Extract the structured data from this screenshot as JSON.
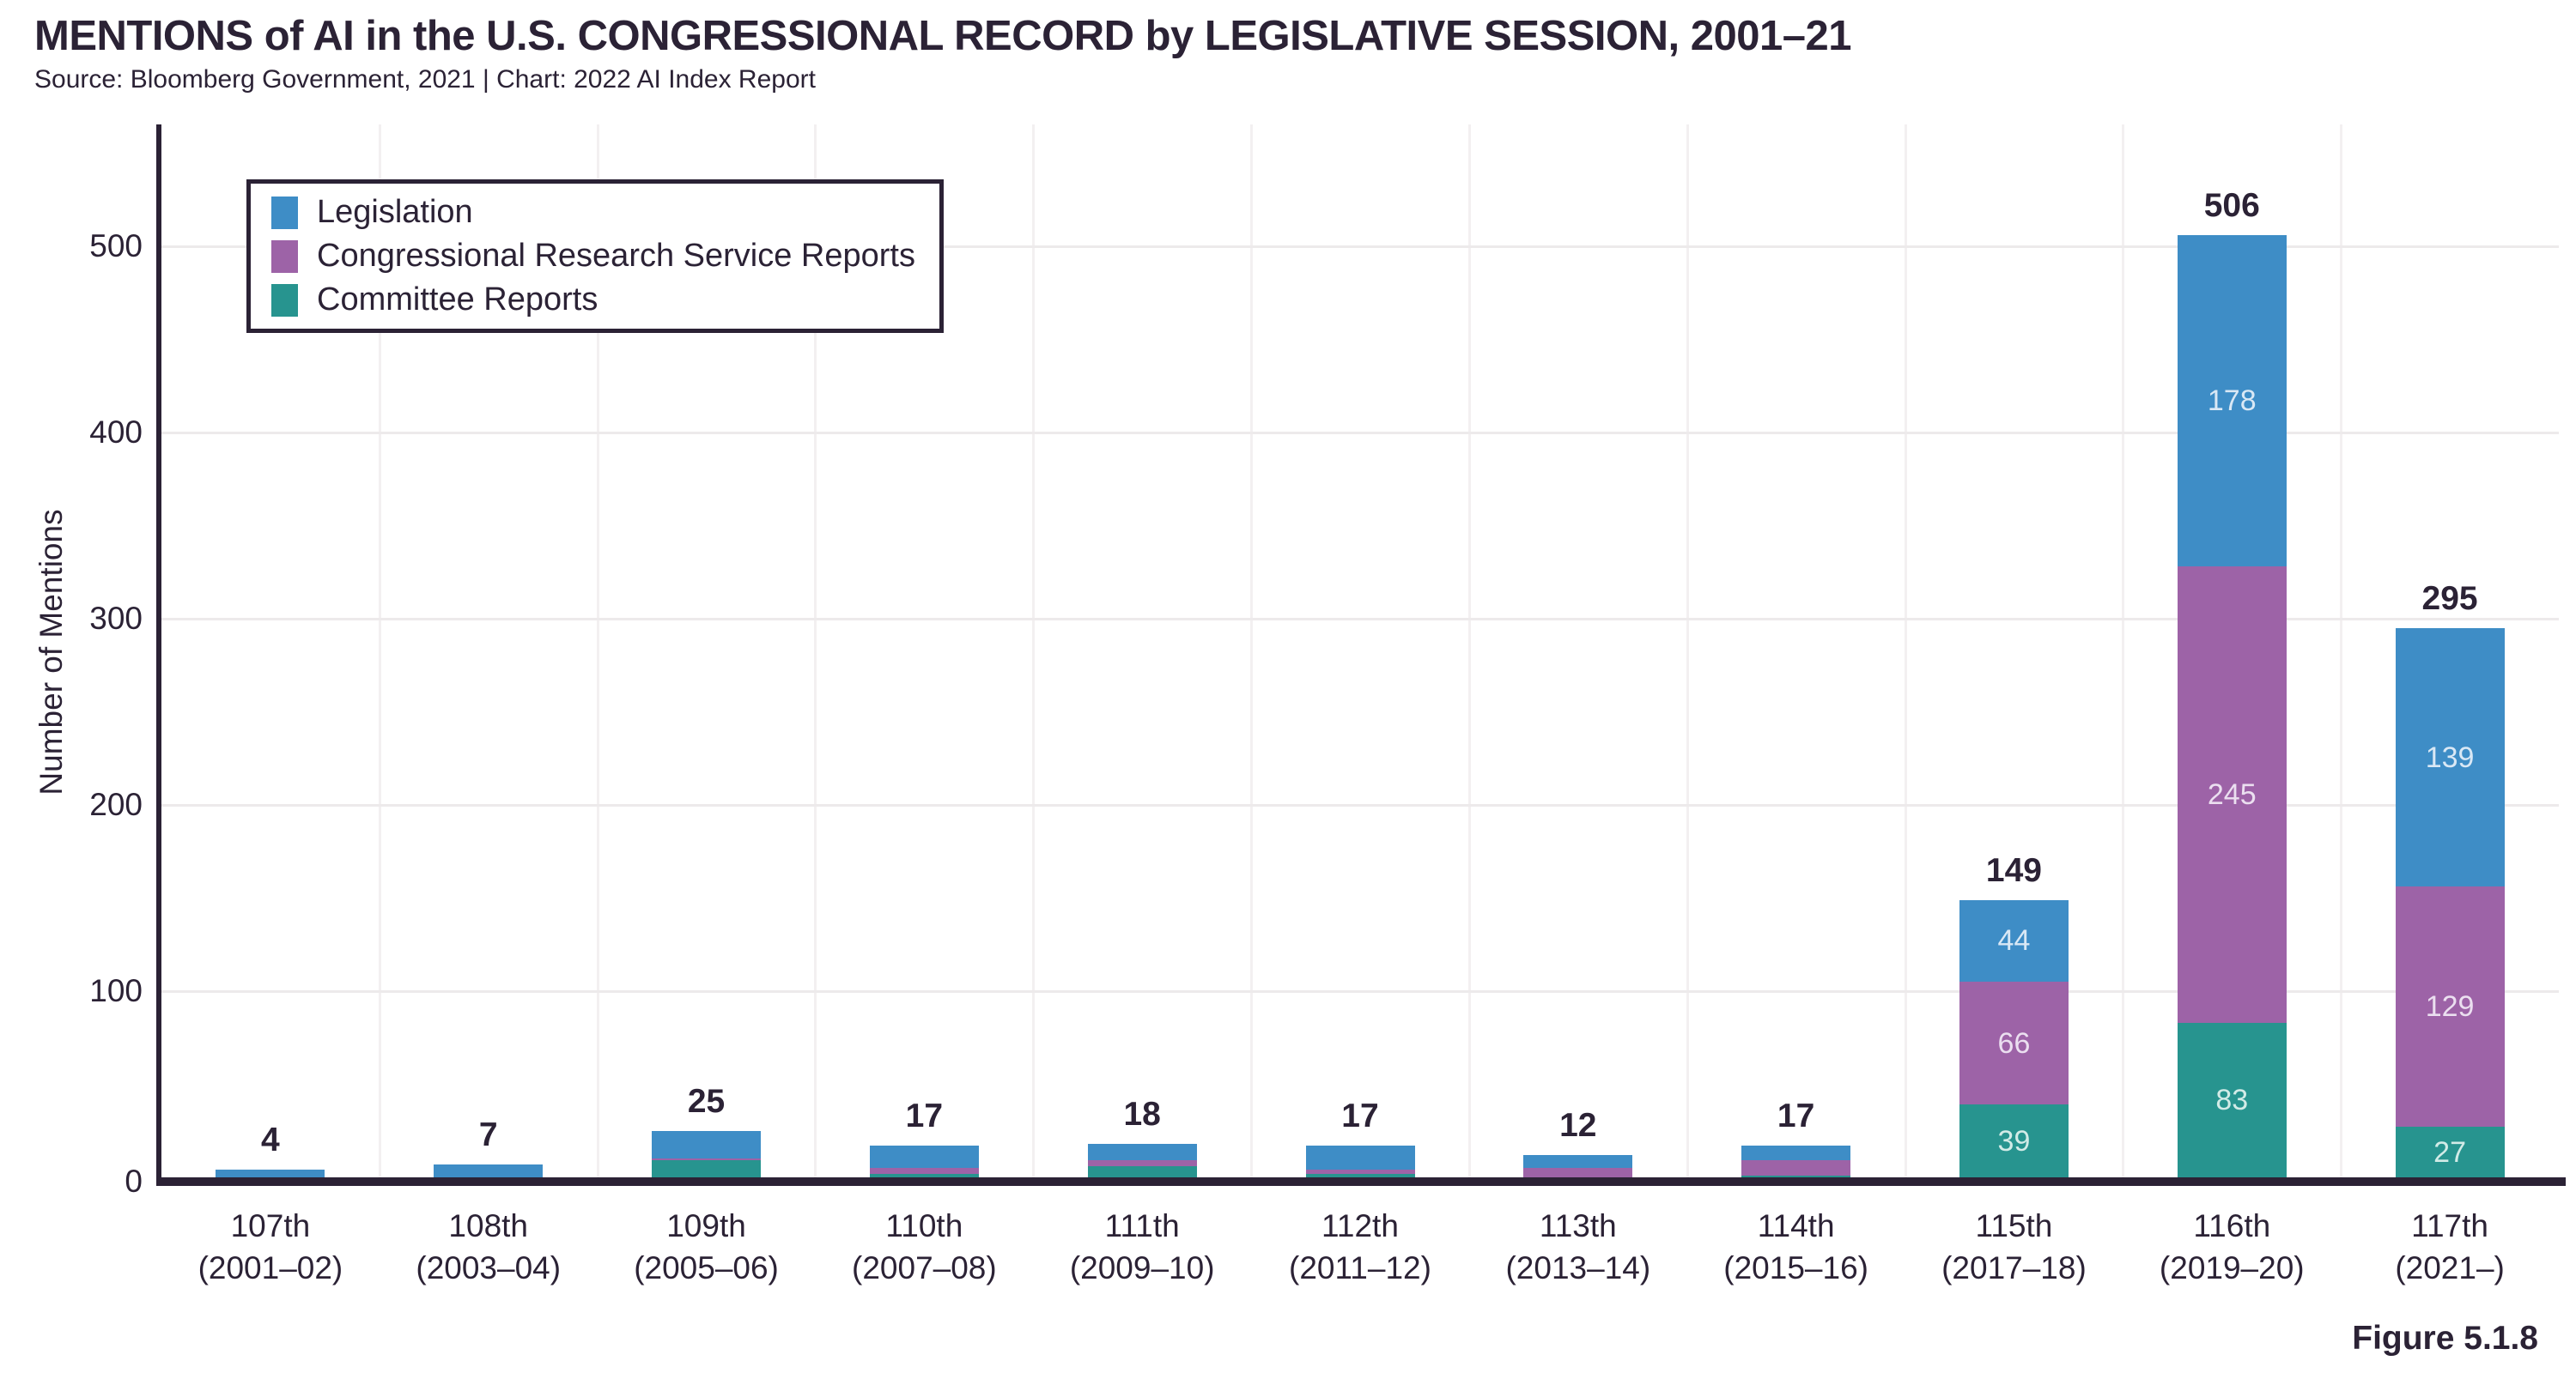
{
  "header": {
    "title": "MENTIONS of AI in the U.S. CONGRESSIONAL RECORD by LEGISLATIVE SESSION, 2001–21",
    "source": "Source: Bloomberg Government, 2021 | Chart: 2022 AI Index Report"
  },
  "figure_caption": "Figure 5.1.8",
  "colors": {
    "text": "#2B2235",
    "axis": "#2B2235",
    "background": "#FFFFFF",
    "h_gridline": "#EDEAEB",
    "v_gridline": "#F3F0F1",
    "legislation_blue": "#3E8DC6",
    "crs_purple": "#9D63A7",
    "committee_teal": "#27948F"
  },
  "chart_data": {
    "type": "bar",
    "stacked": true,
    "title": "MENTIONS of AI in the U.S. CONGRESSIONAL RECORD by LEGISLATIVE SESSION, 2001–21",
    "ylabel": "Number of Mentions",
    "ylim": [
      0,
      560
    ],
    "yticks": [
      0,
      100,
      200,
      300,
      400,
      500
    ],
    "grid": true,
    "legend_position": "top-left",
    "categories": [
      {
        "session": "107th",
        "years": "(2001–02)",
        "show_segment_labels": false
      },
      {
        "session": "108th",
        "years": "(2003–04)",
        "show_segment_labels": false
      },
      {
        "session": "109th",
        "years": "(2005–06)",
        "show_segment_labels": false
      },
      {
        "session": "110th",
        "years": "(2007–08)",
        "show_segment_labels": false
      },
      {
        "session": "111th",
        "years": "(2009–10)",
        "show_segment_labels": false
      },
      {
        "session": "112th",
        "years": "(2011–12)",
        "show_segment_labels": false
      },
      {
        "session": "113th",
        "years": "(2013–14)",
        "show_segment_labels": false
      },
      {
        "session": "114th",
        "years": "(2015–16)",
        "show_segment_labels": false
      },
      {
        "session": "115th",
        "years": "(2017–18)",
        "show_segment_labels": true
      },
      {
        "session": "116th",
        "years": "(2019–20)",
        "show_segment_labels": true
      },
      {
        "session": "117th",
        "years": "(2021–)",
        "show_segment_labels": true
      }
    ],
    "series": [
      {
        "name": "Legislation",
        "color": "#3E8DC6",
        "label_color": "#D9E8F5",
        "values": [
          4,
          7,
          15,
          12,
          9,
          13,
          7,
          8,
          44,
          178,
          139
        ]
      },
      {
        "name": "Congressional Research Service Reports",
        "color": "#9D63A7",
        "label_color": "#EBDFF0",
        "values": [
          0,
          0,
          1,
          3,
          3,
          2,
          5,
          8,
          66,
          245,
          129
        ]
      },
      {
        "name": "Committee Reports",
        "color": "#27948F",
        "label_color": "#D2EBE7",
        "values": [
          0,
          0,
          9,
          2,
          6,
          2,
          0,
          1,
          39,
          83,
          27
        ]
      }
    ],
    "totals": [
      4,
      7,
      25,
      17,
      18,
      17,
      12,
      17,
      149,
      506,
      295
    ]
  }
}
